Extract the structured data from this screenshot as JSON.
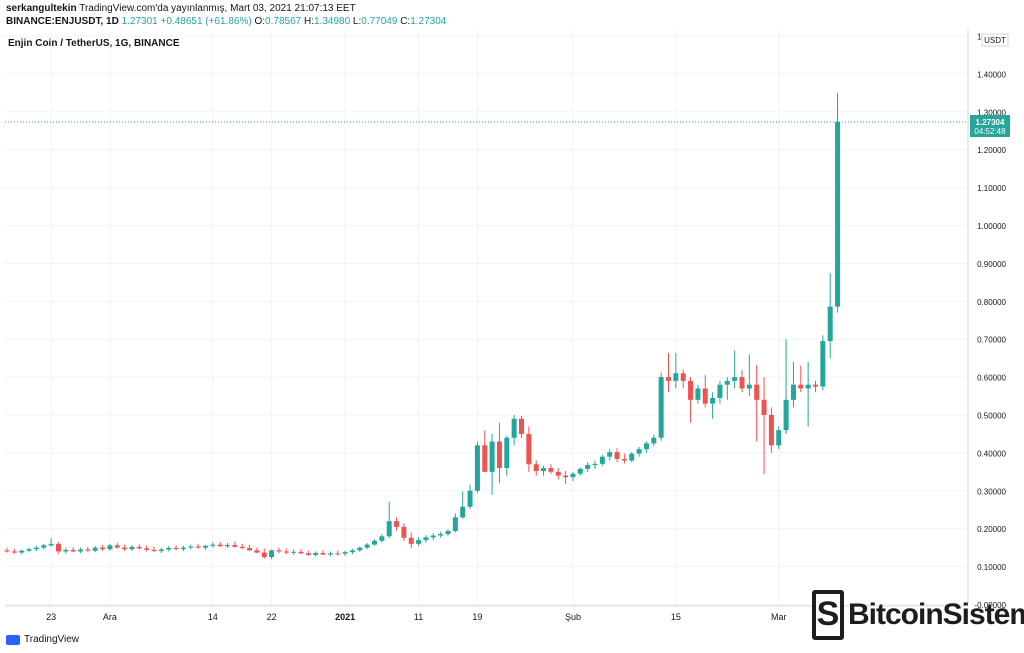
{
  "header": {
    "publisher": "serkangultekin",
    "published_text": "TradingView.com'da yayınlanmış, Mart 03, 2021 21:07:13 EET",
    "symbol": "BINANCE:ENJUSDT, 1D",
    "last": "1.27301",
    "change": "+0.48651 (+61.86%)",
    "o_label": "O:",
    "o": "0.78567",
    "h_label": "H:",
    "h": "1.34980",
    "l_label": "L:",
    "l": "0.77049",
    "c_label": "C:",
    "c": "1.27304"
  },
  "footer": {
    "tradingview": "TradingView",
    "bitcoinsistemi": "BitcoinSistemi"
  },
  "colors": {
    "up": "#26a69a",
    "down": "#ef5350",
    "grid": "#f0f3fa",
    "price_line": "#26a69a"
  },
  "chart_data": {
    "type": "candlestick",
    "title": "Enjin Coin / TetherUS, 1G, BINANCE",
    "y_unit": "USDT",
    "ylim": [
      0,
      1.5
    ],
    "y_ticks": [
      "1.50000",
      "1.40000",
      "1.30000",
      "1.20000",
      "1.10000",
      "1.00000",
      "0.90000",
      "0.80000",
      "0.70000",
      "0.60000",
      "0.50000",
      "0.40000",
      "0.30000",
      "0.20000",
      "0.10000",
      "-0.00000"
    ],
    "y_tick_values": [
      1.5,
      1.4,
      1.3,
      1.2,
      1.1,
      1.0,
      0.9,
      0.8,
      0.7,
      0.6,
      0.5,
      0.4,
      0.3,
      0.2,
      0.1,
      0.0
    ],
    "x_ticks": [
      {
        "label": "23",
        "index": 6
      },
      {
        "label": "Ara",
        "index": 14
      },
      {
        "label": "14",
        "index": 28
      },
      {
        "label": "22",
        "index": 36
      },
      {
        "label": "2021",
        "index": 46
      },
      {
        "label": "11",
        "index": 56
      },
      {
        "label": "19",
        "index": 64
      },
      {
        "label": "Şub",
        "index": 77
      },
      {
        "label": "15",
        "index": 91
      },
      {
        "label": "Mar",
        "index": 105
      }
    ],
    "last_price_label": "1.27304",
    "countdown_label": "04:52:48",
    "candles": [
      [
        0.143,
        0.15,
        0.137,
        0.14
      ],
      [
        0.14,
        0.147,
        0.134,
        0.137
      ],
      [
        0.137,
        0.145,
        0.133,
        0.142
      ],
      [
        0.142,
        0.15,
        0.138,
        0.146
      ],
      [
        0.146,
        0.155,
        0.141,
        0.15
      ],
      [
        0.15,
        0.16,
        0.145,
        0.156
      ],
      [
        0.156,
        0.175,
        0.152,
        0.16
      ],
      [
        0.16,
        0.165,
        0.134,
        0.14
      ],
      [
        0.14,
        0.15,
        0.134,
        0.144
      ],
      [
        0.144,
        0.151,
        0.138,
        0.14
      ],
      [
        0.14,
        0.15,
        0.136,
        0.145
      ],
      [
        0.145,
        0.152,
        0.139,
        0.142
      ],
      [
        0.142,
        0.154,
        0.138,
        0.15
      ],
      [
        0.15,
        0.157,
        0.142,
        0.146
      ],
      [
        0.146,
        0.16,
        0.141,
        0.156
      ],
      [
        0.156,
        0.163,
        0.148,
        0.15
      ],
      [
        0.15,
        0.158,
        0.142,
        0.146
      ],
      [
        0.146,
        0.157,
        0.141,
        0.152
      ],
      [
        0.152,
        0.159,
        0.145,
        0.148
      ],
      [
        0.148,
        0.156,
        0.14,
        0.144
      ],
      [
        0.144,
        0.152,
        0.138,
        0.141
      ],
      [
        0.141,
        0.149,
        0.136,
        0.145
      ],
      [
        0.145,
        0.154,
        0.14,
        0.149
      ],
      [
        0.149,
        0.156,
        0.143,
        0.146
      ],
      [
        0.146,
        0.155,
        0.141,
        0.15
      ],
      [
        0.15,
        0.158,
        0.145,
        0.153
      ],
      [
        0.153,
        0.16,
        0.147,
        0.15
      ],
      [
        0.15,
        0.157,
        0.144,
        0.155
      ],
      [
        0.155,
        0.164,
        0.15,
        0.158
      ],
      [
        0.158,
        0.165,
        0.151,
        0.154
      ],
      [
        0.154,
        0.162,
        0.149,
        0.157
      ],
      [
        0.157,
        0.166,
        0.15,
        0.152
      ],
      [
        0.152,
        0.16,
        0.146,
        0.149
      ],
      [
        0.149,
        0.157,
        0.141,
        0.143
      ],
      [
        0.143,
        0.15,
        0.135,
        0.137
      ],
      [
        0.137,
        0.148,
        0.121,
        0.125
      ],
      [
        0.125,
        0.145,
        0.12,
        0.143
      ],
      [
        0.143,
        0.15,
        0.135,
        0.14
      ],
      [
        0.14,
        0.148,
        0.133,
        0.137
      ],
      [
        0.137,
        0.145,
        0.131,
        0.139
      ],
      [
        0.139,
        0.146,
        0.133,
        0.135
      ],
      [
        0.135,
        0.142,
        0.128,
        0.131
      ],
      [
        0.131,
        0.14,
        0.126,
        0.136
      ],
      [
        0.136,
        0.143,
        0.13,
        0.132
      ],
      [
        0.132,
        0.14,
        0.127,
        0.135
      ],
      [
        0.135,
        0.142,
        0.129,
        0.134
      ],
      [
        0.134,
        0.142,
        0.128,
        0.138
      ],
      [
        0.138,
        0.147,
        0.133,
        0.143
      ],
      [
        0.143,
        0.153,
        0.139,
        0.15
      ],
      [
        0.15,
        0.162,
        0.146,
        0.158
      ],
      [
        0.158,
        0.172,
        0.155,
        0.168
      ],
      [
        0.168,
        0.186,
        0.163,
        0.18
      ],
      [
        0.18,
        0.272,
        0.175,
        0.22
      ],
      [
        0.22,
        0.23,
        0.195,
        0.205
      ],
      [
        0.205,
        0.214,
        0.168,
        0.176
      ],
      [
        0.176,
        0.19,
        0.148,
        0.16
      ],
      [
        0.16,
        0.178,
        0.154,
        0.17
      ],
      [
        0.17,
        0.183,
        0.163,
        0.177
      ],
      [
        0.177,
        0.188,
        0.17,
        0.182
      ],
      [
        0.182,
        0.192,
        0.176,
        0.186
      ],
      [
        0.186,
        0.198,
        0.181,
        0.194
      ],
      [
        0.194,
        0.24,
        0.19,
        0.23
      ],
      [
        0.23,
        0.298,
        0.226,
        0.258
      ],
      [
        0.258,
        0.316,
        0.252,
        0.3
      ],
      [
        0.3,
        0.43,
        0.295,
        0.42
      ],
      [
        0.42,
        0.46,
        0.35,
        0.35
      ],
      [
        0.35,
        0.45,
        0.29,
        0.43
      ],
      [
        0.43,
        0.48,
        0.32,
        0.36
      ],
      [
        0.36,
        0.445,
        0.34,
        0.44
      ],
      [
        0.44,
        0.5,
        0.42,
        0.49
      ],
      [
        0.49,
        0.498,
        0.44,
        0.45
      ],
      [
        0.45,
        0.47,
        0.35,
        0.37
      ],
      [
        0.37,
        0.38,
        0.34,
        0.352
      ],
      [
        0.352,
        0.366,
        0.34,
        0.36
      ],
      [
        0.36,
        0.37,
        0.345,
        0.35
      ],
      [
        0.35,
        0.36,
        0.33,
        0.34
      ],
      [
        0.34,
        0.352,
        0.318,
        0.336
      ],
      [
        0.336,
        0.35,
        0.326,
        0.345
      ],
      [
        0.345,
        0.362,
        0.34,
        0.358
      ],
      [
        0.358,
        0.375,
        0.35,
        0.368
      ],
      [
        0.368,
        0.38,
        0.358,
        0.371
      ],
      [
        0.371,
        0.395,
        0.365,
        0.39
      ],
      [
        0.39,
        0.41,
        0.38,
        0.402
      ],
      [
        0.402,
        0.412,
        0.375,
        0.384
      ],
      [
        0.384,
        0.398,
        0.372,
        0.38
      ],
      [
        0.38,
        0.402,
        0.375,
        0.398
      ],
      [
        0.398,
        0.416,
        0.39,
        0.41
      ],
      [
        0.41,
        0.43,
        0.4,
        0.425
      ],
      [
        0.425,
        0.448,
        0.418,
        0.44
      ],
      [
        0.44,
        0.612,
        0.432,
        0.6
      ],
      [
        0.6,
        0.664,
        0.56,
        0.59
      ],
      [
        0.59,
        0.664,
        0.57,
        0.61
      ],
      [
        0.61,
        0.62,
        0.57,
        0.59
      ],
      [
        0.59,
        0.6,
        0.48,
        0.54
      ],
      [
        0.54,
        0.58,
        0.53,
        0.57
      ],
      [
        0.57,
        0.605,
        0.52,
        0.53
      ],
      [
        0.53,
        0.56,
        0.49,
        0.545
      ],
      [
        0.545,
        0.59,
        0.53,
        0.58
      ],
      [
        0.58,
        0.6,
        0.54,
        0.59
      ],
      [
        0.59,
        0.67,
        0.57,
        0.6
      ],
      [
        0.6,
        0.618,
        0.56,
        0.57
      ],
      [
        0.57,
        0.66,
        0.55,
        0.58
      ],
      [
        0.58,
        0.632,
        0.43,
        0.54
      ],
      [
        0.54,
        0.6,
        0.344,
        0.5
      ],
      [
        0.5,
        0.52,
        0.4,
        0.42
      ],
      [
        0.42,
        0.47,
        0.41,
        0.46
      ],
      [
        0.46,
        0.7,
        0.45,
        0.54
      ],
      [
        0.54,
        0.64,
        0.52,
        0.58
      ],
      [
        0.58,
        0.63,
        0.56,
        0.57
      ],
      [
        0.57,
        0.64,
        0.47,
        0.58
      ],
      [
        0.58,
        0.59,
        0.56,
        0.575
      ],
      [
        0.575,
        0.71,
        0.565,
        0.695
      ],
      [
        0.695,
        0.875,
        0.65,
        0.786
      ],
      [
        0.786,
        1.349,
        0.77,
        1.273
      ]
    ]
  }
}
